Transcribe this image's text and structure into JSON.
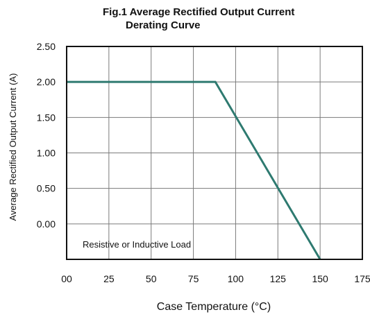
{
  "chart_data": {
    "type": "line",
    "title_line1": "Fig.1   Average Rectified Output Current",
    "title_line2": "Derating Curve",
    "xlabel": "Case Temperature (°C)",
    "ylabel": "Average Rectified Output Current (A)",
    "annotation": "Resistive or Inductive Load",
    "x_ticks": [
      0,
      25,
      50,
      75,
      100,
      125,
      150,
      175
    ],
    "x_tick_labels": [
      "00",
      "25",
      "50",
      "75",
      "100",
      "125",
      "150",
      "175"
    ],
    "y_tick_labels": [
      "2.50",
      "2.00",
      "1.50",
      "1.00",
      "0.50",
      "0.00"
    ],
    "xlim": [
      0,
      175
    ],
    "ylim": [
      -0.5,
      2.5
    ],
    "grid": true,
    "series": [
      {
        "color": "#2e7a70",
        "points": [
          {
            "x": 0,
            "y": 2.0
          },
          {
            "x": 88,
            "y": 2.0
          },
          {
            "x": 150,
            "y": -0.5
          }
        ]
      }
    ]
  }
}
